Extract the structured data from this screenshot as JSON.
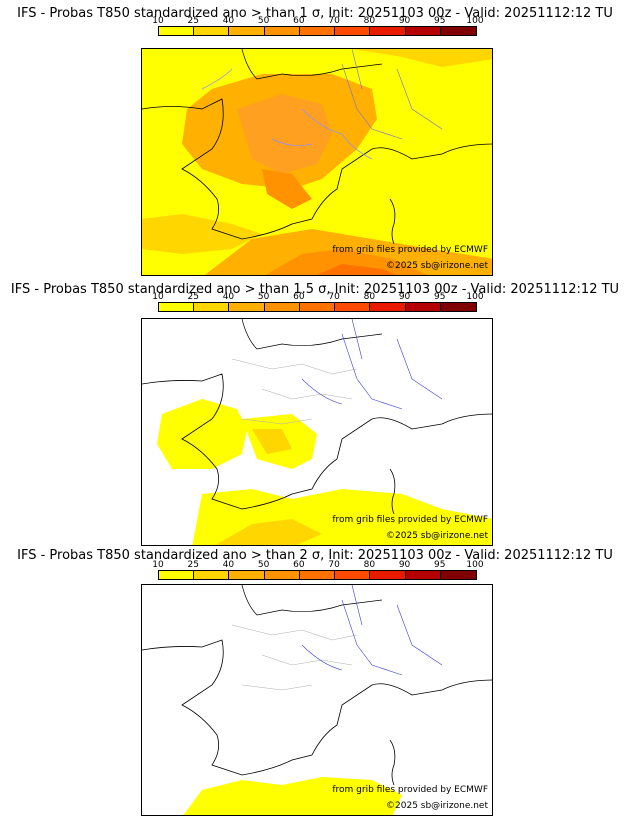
{
  "colorbar": {
    "ticks": [
      "10",
      "25",
      "40",
      "50",
      "60",
      "70",
      "80",
      "90",
      "95",
      "100"
    ],
    "colors": [
      "#ffff00",
      "#ffd600",
      "#ffb000",
      "#ff9200",
      "#ff7200",
      "#ff4a00",
      "#e81a00",
      "#b40000",
      "#800000"
    ]
  },
  "panels": [
    {
      "title": "IFS - Probas T850  standardized ano > than 1 σ, Init: 20251103 00z - Valid: 20251112:12 TU",
      "credit_line1": "from grib files provided by ECMWF",
      "credit_line2": "©2025 sb@irizone.net"
    },
    {
      "title": "IFS - Probas T850  standardized ano > than 1.5 σ, Init: 20251103 00z - Valid: 20251112:12 TU",
      "credit_line1": "from grib files provided by ECMWF",
      "credit_line2": "©2025 sb@irizone.net"
    },
    {
      "title": "IFS - Probas T850  standardized ano > than 2 σ, Init: 20251103 00z - Valid: 20251112:12 TU",
      "credit_line1": "from grib files provided by ECMWF",
      "credit_line2": "©2025 sb@irizone.net"
    }
  ]
}
